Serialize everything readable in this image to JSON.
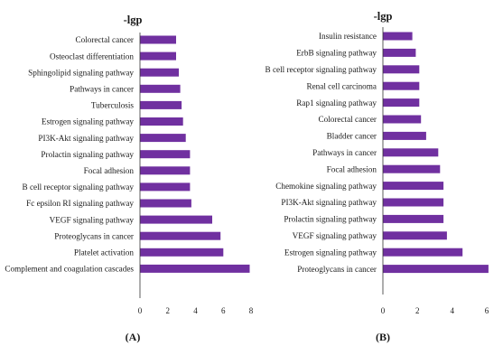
{
  "chart_data": [
    {
      "type": "bar",
      "orientation": "horizontal",
      "title": "-lgp",
      "panel_label": "(A)",
      "categories": [
        "Colorectal cancer",
        "Osteoclast differentiation",
        "Sphingolipid signaling pathway",
        "Pathways in cancer",
        "Tuberculosis",
        "Estrogen signaling pathway",
        "PI3K-Akt signaling pathway",
        "Prolactin signaling pathway",
        "Focal adhesion",
        "B cell receptor signaling pathway",
        "Fc epsilon RI signaling pathway",
        "VEGF signaling pathway",
        "Proteoglycans in cancer",
        "Platelet activation",
        "Complement and coagulation cascades"
      ],
      "values": [
        2.6,
        2.6,
        2.8,
        2.9,
        3.0,
        3.1,
        3.3,
        3.6,
        3.6,
        3.6,
        3.7,
        5.2,
        5.8,
        6.0,
        7.9
      ],
      "xlim": [
        0,
        8
      ],
      "xticks": [
        "0",
        "2",
        "4",
        "6",
        "8"
      ],
      "color": "#7030A0",
      "grid": false
    },
    {
      "type": "bar",
      "orientation": "horizontal",
      "title": "-lgp",
      "panel_label": "(B)",
      "categories": [
        "Insulin resistance",
        "ErbB signaling pathway",
        "B cell receptor signaling pathway",
        "Renal cell carcinoma",
        "Rap1 signaling pathway",
        "Colorectal cancer",
        "Bladder cancer",
        "Pathways in cancer",
        "Focal adhesion",
        "Chemokine signaling pathway",
        "PI3K-Akt signaling pathway",
        "Prolactin signaling pathway",
        "VEGF signaling pathway",
        "Estrogen signaling pathway",
        "Proteoglycans in cancer"
      ],
      "values": [
        1.7,
        1.9,
        2.1,
        2.1,
        2.1,
        2.2,
        2.5,
        3.2,
        3.3,
        3.5,
        3.5,
        3.5,
        3.7,
        4.6,
        6.1
      ],
      "xlim": [
        0,
        6
      ],
      "xticks": [
        "0",
        "2",
        "4",
        "6"
      ],
      "color": "#7030A0",
      "grid": false
    }
  ]
}
